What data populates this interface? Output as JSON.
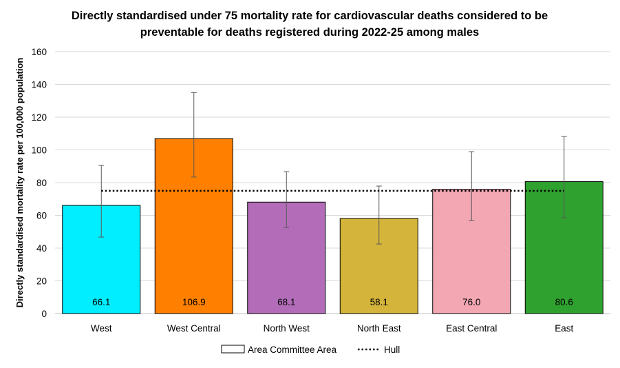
{
  "chart_data": {
    "type": "bar",
    "title": "Directly standardised under 75 mortality rate for cardiovascular deaths considered to be preventable for deaths registered during 2022-25 among males",
    "title_lines": [
      "Directly standardised under 75 mortality rate for cardiovascular deaths considered to be",
      "preventable for deaths registered during 2022-25 among males"
    ],
    "xlabel": "",
    "ylabel": "Directly standardised mortality rate per 100,000 population",
    "ylim": [
      0,
      160
    ],
    "yticks": [
      0,
      20,
      40,
      60,
      80,
      100,
      120,
      140,
      160
    ],
    "grid": true,
    "categories": [
      "West",
      "West Central",
      "North West",
      "North East",
      "East Central",
      "East"
    ],
    "values": [
      66.1,
      106.9,
      68.1,
      58.1,
      76.0,
      80.6
    ],
    "value_labels": [
      "66.1",
      "106.9",
      "68.1",
      "58.1",
      "76.0",
      "80.6"
    ],
    "ci_lower": [
      46.7,
      83.4,
      52.6,
      42.5,
      56.8,
      58.5
    ],
    "ci_upper": [
      90.5,
      135.0,
      86.7,
      77.9,
      98.9,
      108.2
    ],
    "colors": [
      "#00EEFF",
      "#FF8000",
      "#B36DB8",
      "#D4B43A",
      "#F2A7B3",
      "#2FA12F"
    ],
    "reference_line": {
      "name": "Hull",
      "value": 75.0,
      "style": "dotted",
      "color": "#000000"
    },
    "legend": {
      "placement": "bottom",
      "entries": [
        "Area Committee Area",
        "Hull"
      ]
    }
  }
}
